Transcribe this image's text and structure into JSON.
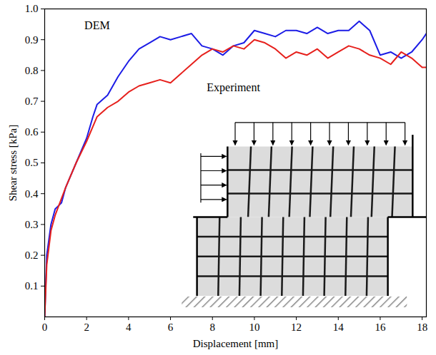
{
  "chart_data": {
    "type": "line",
    "x_label": "Displacement [mm]",
    "y_label": "Shear stress [kPa]",
    "xlim": [
      0,
      18.2
    ],
    "ylim": [
      0,
      1
    ],
    "xticks": [
      0,
      2,
      4,
      6,
      8,
      10,
      12,
      14,
      16,
      18
    ],
    "yticks": [
      0.1,
      0.2,
      0.3,
      0.4,
      0.5,
      0.6,
      0.7,
      0.8,
      0.9,
      {
        "value": 1,
        "label": "1.0"
      }
    ],
    "grid": false,
    "annotations": [
      {
        "text": "DEM",
        "x": 2.5,
        "y": 0.947
      },
      {
        "text": "Experiment",
        "x": 9.0,
        "y": 0.745
      }
    ],
    "series": [
      {
        "name": "DEM",
        "color": "#1c1ce6",
        "x": [
          0,
          0.1,
          0.3,
          0.5,
          0.8,
          1,
          1.5,
          2,
          2.3,
          2.5,
          3,
          3.5,
          4,
          4.5,
          5,
          5.5,
          6,
          6.5,
          7,
          7.5,
          8,
          8.5,
          9,
          9.5,
          10,
          10.5,
          11,
          11.5,
          12,
          12.5,
          13,
          13.5,
          14,
          14.5,
          15,
          15.5,
          16,
          16.5,
          17,
          17.5,
          18,
          18.2
        ],
        "values": [
          0,
          0.2,
          0.3,
          0.35,
          0.37,
          0.42,
          0.5,
          0.58,
          0.65,
          0.69,
          0.72,
          0.78,
          0.83,
          0.87,
          0.89,
          0.91,
          0.9,
          0.91,
          0.92,
          0.88,
          0.87,
          0.85,
          0.88,
          0.89,
          0.93,
          0.92,
          0.91,
          0.93,
          0.93,
          0.92,
          0.94,
          0.92,
          0.93,
          0.93,
          0.96,
          0.93,
          0.85,
          0.86,
          0.84,
          0.86,
          0.9,
          0.92
        ]
      },
      {
        "name": "Experiment",
        "color": "#e6201c",
        "x": [
          0,
          0.1,
          0.3,
          0.5,
          1,
          1.5,
          2,
          2.5,
          3,
          3.5,
          4,
          4.5,
          5,
          5.5,
          6,
          6.5,
          7,
          7.5,
          8,
          8.5,
          9,
          9.5,
          10,
          10.5,
          11,
          11.5,
          12,
          12.5,
          13,
          13.5,
          14,
          14.5,
          15,
          15.5,
          16,
          16.5,
          17,
          17.5,
          18,
          18.2
        ],
        "values": [
          0,
          0.17,
          0.28,
          0.33,
          0.42,
          0.5,
          0.57,
          0.65,
          0.68,
          0.7,
          0.73,
          0.75,
          0.76,
          0.77,
          0.76,
          0.79,
          0.82,
          0.85,
          0.87,
          0.86,
          0.88,
          0.87,
          0.9,
          0.89,
          0.87,
          0.84,
          0.86,
          0.85,
          0.87,
          0.84,
          0.86,
          0.88,
          0.87,
          0.85,
          0.84,
          0.82,
          0.86,
          0.84,
          0.81,
          0.81
        ]
      }
    ]
  }
}
